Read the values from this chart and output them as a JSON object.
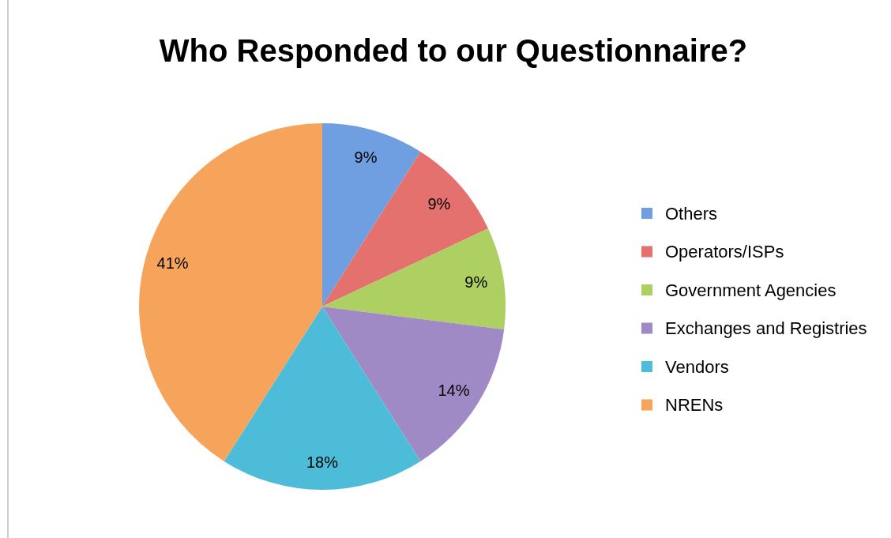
{
  "chart_data": {
    "type": "pie",
    "title": "Who Responded to our Questionnaire?",
    "categories": [
      "Others",
      "Operators/ISPs",
      "Government Agencies",
      "Exchanges and Registries",
      "Vendors",
      "NRENs"
    ],
    "values": [
      9,
      9,
      9,
      14,
      18,
      41
    ],
    "value_labels": [
      "9%",
      "9%",
      "9%",
      "14%",
      "18%",
      "41%"
    ],
    "colors": [
      "#6f9fe0",
      "#e4716e",
      "#aecf62",
      "#a08ac6",
      "#4cbcd8",
      "#f6a45c"
    ],
    "legend": "right"
  }
}
